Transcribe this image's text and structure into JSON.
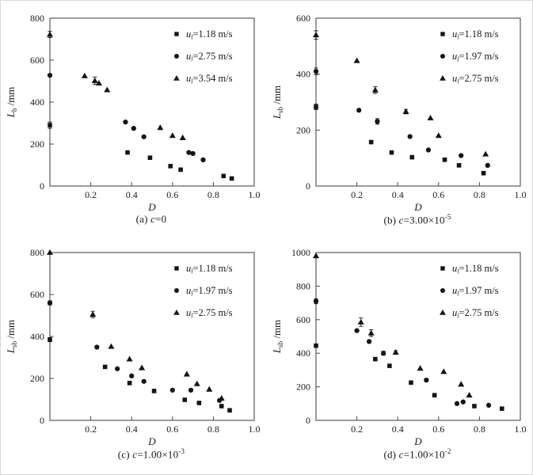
{
  "figure": {
    "background": "#ffffff",
    "marker_color": "#151515",
    "axis_color": "#4a4a4a",
    "text_color": "#1a1a1a",
    "grid": false,
    "legend_position": "top-right"
  },
  "chart_data": [
    {
      "id": "a",
      "type": "scatter",
      "caption": {
        "prefix": "(a) ",
        "var": "c",
        "value": "=0",
        "exp": ""
      },
      "xlabel": "D",
      "ylabel": {
        "main": "L",
        "sub": "b",
        "unit": "/mm"
      },
      "xlim": [
        0,
        1.0
      ],
      "ylim": [
        0,
        800
      ],
      "xticks": [
        0.2,
        0.4,
        0.6,
        0.8,
        1.0
      ],
      "yticks": [
        0,
        200,
        400,
        600,
        800
      ],
      "series": [
        {
          "name": "ul=1.18 m/s",
          "marker": "square",
          "label": {
            "var": "u",
            "sub": "l",
            "rest": "=1.18 m/s"
          },
          "points": [
            [
              0,
              290,
              15
            ],
            [
              0.38,
              160
            ],
            [
              0.49,
              135
            ],
            [
              0.59,
              95
            ],
            [
              0.64,
              78
            ],
            [
              0.85,
              48
            ],
            [
              0.89,
              36
            ]
          ]
        },
        {
          "name": "ul=2.75 m/s",
          "marker": "circle",
          "label": {
            "var": "u",
            "sub": "l",
            "rest": "=2.75 m/s"
          },
          "points": [
            [
              0,
              528
            ],
            [
              0.37,
              305
            ],
            [
              0.41,
              275
            ],
            [
              0.46,
              235
            ],
            [
              0.68,
              160
            ],
            [
              0.7,
              155
            ],
            [
              0.75,
              125
            ]
          ]
        },
        {
          "name": "ul=3.54 m/s",
          "marker": "triangle",
          "label": {
            "var": "u",
            "sub": "l",
            "rest": "=3.54 m/s"
          },
          "points": [
            [
              0,
              722,
              15
            ],
            [
              0.17,
              525
            ],
            [
              0.22,
              502,
              18
            ],
            [
              0.24,
              490
            ],
            [
              0.28,
              458
            ],
            [
              0.54,
              278
            ],
            [
              0.6,
              240
            ],
            [
              0.65,
              230
            ]
          ]
        }
      ]
    },
    {
      "id": "b",
      "type": "scatter",
      "caption": {
        "prefix": "(b) ",
        "var": "c",
        "value": "=3.00×10",
        "exp": "-5"
      },
      "xlabel": "D",
      "ylabel": {
        "main": "L",
        "sub": "sb",
        "unit": "/mm"
      },
      "xlim": [
        0,
        1.0
      ],
      "ylim": [
        0,
        600
      ],
      "xticks": [
        0.2,
        0.4,
        0.6,
        0.8,
        1.0
      ],
      "yticks": [
        0,
        200,
        400,
        600
      ],
      "series": [
        {
          "name": "ul=1.18 m/s",
          "marker": "square",
          "label": {
            "var": "u",
            "sub": "l",
            "rest": "=1.18 m/s"
          },
          "points": [
            [
              0,
              283,
              10
            ],
            [
              0.27,
              157
            ],
            [
              0.37,
              120
            ],
            [
              0.47,
              103
            ],
            [
              0.63,
              94
            ],
            [
              0.7,
              74
            ],
            [
              0.82,
              46
            ]
          ]
        },
        {
          "name": "ul=1.97 m/s",
          "marker": "circle",
          "label": {
            "var": "u",
            "sub": "l",
            "rest": "=1.97 m/s"
          },
          "points": [
            [
              0,
              410,
              12
            ],
            [
              0.21,
              271
            ],
            [
              0.3,
              231,
              10
            ],
            [
              0.46,
              177
            ],
            [
              0.55,
              129
            ],
            [
              0.71,
              109
            ],
            [
              0.84,
              74
            ]
          ]
        },
        {
          "name": "ul=2.75 m/s",
          "marker": "triangle",
          "label": {
            "var": "u",
            "sub": "l",
            "rest": "=2.75 m/s"
          },
          "points": [
            [
              0,
              540,
              15
            ],
            [
              0.2,
              448
            ],
            [
              0.29,
              343,
              12
            ],
            [
              0.44,
              266,
              8
            ],
            [
              0.56,
              243
            ],
            [
              0.6,
              180
            ],
            [
              0.83,
              114
            ]
          ]
        }
      ]
    },
    {
      "id": "c",
      "type": "scatter",
      "caption": {
        "prefix": "(c) ",
        "var": "c",
        "value": "=1.00×10",
        "exp": "-3"
      },
      "xlabel": "D",
      "ylabel": {
        "main": "L",
        "sub": "sb",
        "unit": "/mm"
      },
      "xlim": [
        0,
        1.0
      ],
      "ylim": [
        0,
        800
      ],
      "xticks": [
        0.2,
        0.4,
        0.6,
        0.8,
        1.0
      ],
      "yticks": [
        0,
        200,
        400,
        600,
        800
      ],
      "series": [
        {
          "name": "ul=1.18 m/s",
          "marker": "square",
          "label": {
            "var": "u",
            "sub": "l",
            "rest": "=1.18 m/s"
          },
          "points": [
            [
              0,
              385,
              10
            ],
            [
              0.27,
              255
            ],
            [
              0.39,
              178
            ],
            [
              0.51,
              140
            ],
            [
              0.66,
              98
            ],
            [
              0.73,
              83
            ],
            [
              0.84,
              68
            ],
            [
              0.88,
              48
            ]
          ]
        },
        {
          "name": "ul=1.97 m/s",
          "marker": "circle",
          "label": {
            "var": "u",
            "sub": "l",
            "rest": "=1.97 m/s"
          },
          "points": [
            [
              0,
              560,
              10
            ],
            [
              0.23,
              349
            ],
            [
              0.33,
              246
            ],
            [
              0.4,
              212
            ],
            [
              0.46,
              186
            ],
            [
              0.6,
              144
            ],
            [
              0.69,
              144
            ],
            [
              0.83,
              95
            ]
          ]
        },
        {
          "name": "ul=2.75 m/s",
          "marker": "triangle",
          "label": {
            "var": "u",
            "sub": "l",
            "rest": "=2.75 m/s"
          },
          "points": [
            [
              0,
              800
            ],
            [
              0.21,
              505,
              15
            ],
            [
              0.3,
              352
            ],
            [
              0.39,
              292
            ],
            [
              0.45,
              250
            ],
            [
              0.67,
              220
            ],
            [
              0.72,
              174
            ],
            [
              0.78,
              148
            ],
            [
              0.84,
              105
            ]
          ]
        }
      ]
    },
    {
      "id": "d",
      "type": "scatter",
      "caption": {
        "prefix": "(d) ",
        "var": "c",
        "value": "=1.00×10",
        "exp": "-2"
      },
      "xlabel": "D",
      "ylabel": {
        "main": "L",
        "sub": "sb",
        "unit": "/mm"
      },
      "xlim": [
        0,
        1.0
      ],
      "ylim": [
        0,
        1000
      ],
      "xticks": [
        0.2,
        0.4,
        0.6,
        0.8,
        1.0
      ],
      "yticks": [
        0,
        200,
        400,
        600,
        800,
        1000
      ],
      "series": [
        {
          "name": "ul=1.18 m/s",
          "marker": "square",
          "label": {
            "var": "u",
            "sub": "l",
            "rest": "=1.18 m/s"
          },
          "points": [
            [
              0,
              445
            ],
            [
              0.29,
              365
            ],
            [
              0.36,
              325
            ],
            [
              0.465,
              225
            ],
            [
              0.58,
              150
            ],
            [
              0.775,
              85
            ],
            [
              0.91,
              70
            ]
          ]
        },
        {
          "name": "ul=1.97 m/s",
          "marker": "circle",
          "label": {
            "var": "u",
            "sub": "l",
            "rest": "=1.97 m/s"
          },
          "points": [
            [
              0,
              710,
              15
            ],
            [
              0.2,
              535
            ],
            [
              0.26,
              470
            ],
            [
              0.33,
              400,
              12
            ],
            [
              0.54,
              240
            ],
            [
              0.69,
              100
            ],
            [
              0.72,
              110
            ],
            [
              0.845,
              90
            ]
          ]
        },
        {
          "name": "ul=2.75 m/s",
          "marker": "triangle",
          "label": {
            "var": "u",
            "sub": "l",
            "rest": "=2.75 m/s"
          },
          "points": [
            [
              0,
              980
            ],
            [
              0.22,
              585,
              25
            ],
            [
              0.27,
              520,
              20
            ],
            [
              0.39,
              405,
              10
            ],
            [
              0.51,
              310
            ],
            [
              0.625,
              290
            ],
            [
              0.71,
              215
            ],
            [
              0.75,
              150
            ]
          ]
        }
      ]
    }
  ]
}
